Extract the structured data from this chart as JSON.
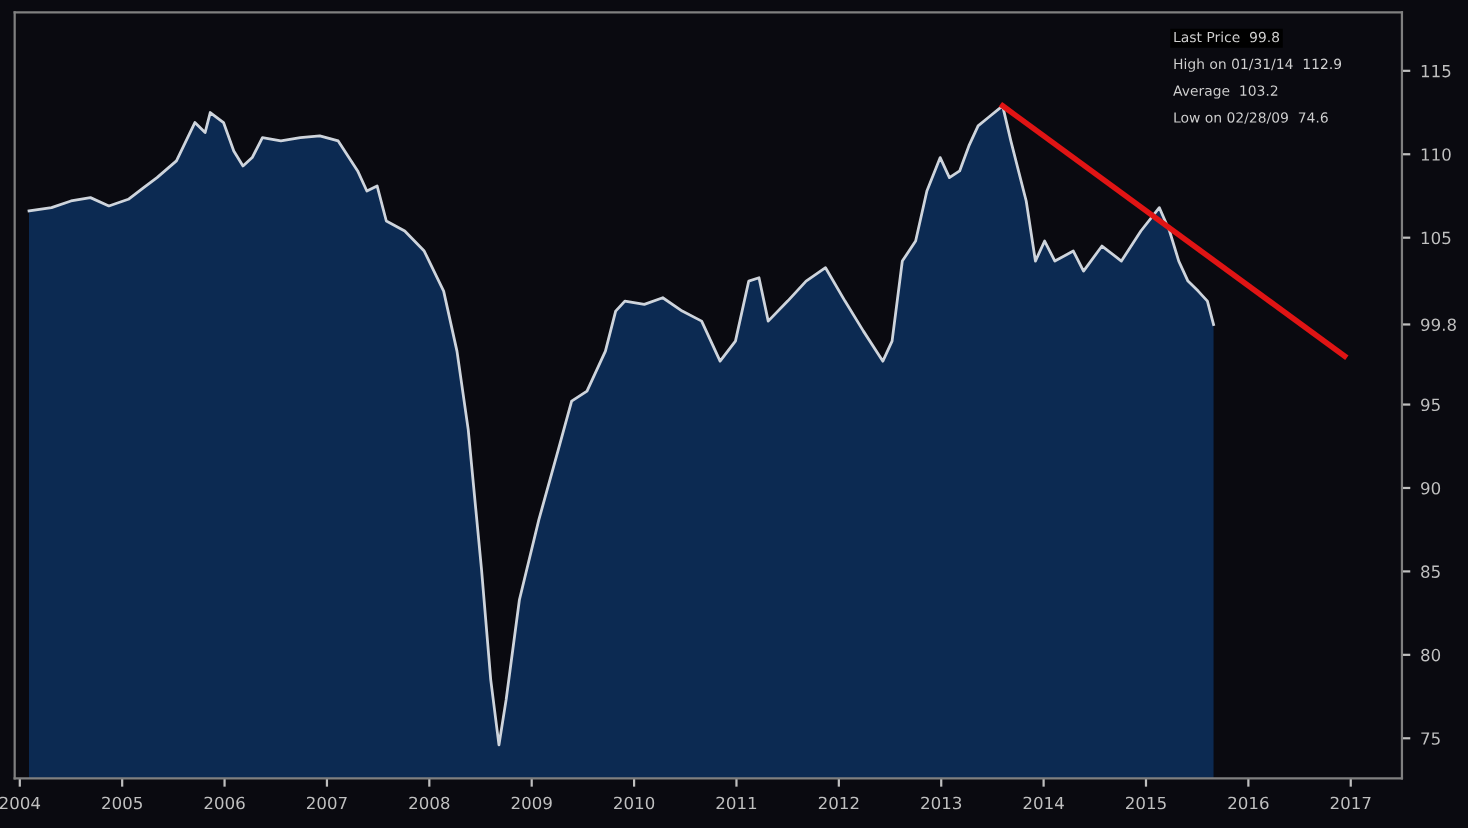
{
  "chart_data": {
    "type": "area",
    "x": [
      2004.59,
      2004.81,
      2005.0,
      2005.19,
      2005.37,
      2005.56,
      2005.71,
      2005.84,
      2006.03,
      2006.21,
      2006.31,
      2006.36,
      2006.49,
      2006.59,
      2006.68,
      2006.77,
      2006.87,
      2007.05,
      2007.24,
      2007.43,
      2007.61,
      2007.8,
      2007.89,
      2007.99,
      2008.08,
      2008.26,
      2008.45,
      2008.64,
      2008.77,
      2008.88,
      2009.01,
      2009.1,
      2009.18,
      2009.25,
      2009.38,
      2009.57,
      2009.76,
      2009.89,
      2010.04,
      2010.22,
      2010.32,
      2010.41,
      2010.6,
      2010.78,
      2010.97,
      2011.16,
      2011.34,
      2011.49,
      2011.62,
      2011.72,
      2011.81,
      2012.0,
      2012.18,
      2012.37,
      2012.56,
      2012.74,
      2012.93,
      2013.02,
      2013.12,
      2013.25,
      2013.36,
      2013.49,
      2013.58,
      2013.68,
      2013.77,
      2013.86,
      2013.96,
      2014.1,
      2014.18,
      2014.33,
      2014.42,
      2014.51,
      2014.61,
      2014.79,
      2014.89,
      2015.07,
      2015.26,
      2015.45,
      2015.63,
      2015.73,
      2015.82,
      2015.91,
      2016.01,
      2016.1,
      2016.16
    ],
    "series": [
      {
        "color": "#0c2a52",
        "values": [
          106.6,
          106.8,
          107.2,
          107.4,
          106.9,
          107.3,
          108.0,
          108.6,
          109.6,
          111.9,
          111.3,
          112.5,
          111.9,
          110.2,
          109.3,
          109.8,
          111.0,
          110.8,
          111.0,
          111.1,
          110.8,
          109.0,
          107.8,
          108.1,
          106.0,
          105.4,
          104.2,
          101.8,
          98.2,
          93.5,
          85.1,
          78.5,
          74.6,
          77.3,
          83.3,
          88.1,
          92.3,
          95.2,
          95.8,
          98.2,
          100.6,
          101.2,
          101.0,
          101.4,
          100.6,
          100.0,
          97.6,
          98.8,
          102.4,
          102.6,
          100.0,
          101.2,
          102.4,
          103.2,
          101.2,
          99.4,
          97.6,
          98.8,
          103.6,
          104.8,
          107.8,
          109.8,
          108.6,
          109.0,
          110.5,
          111.7,
          112.2,
          112.9,
          110.8,
          107.2,
          103.6,
          104.8,
          103.6,
          104.2,
          103.0,
          104.5,
          103.6,
          105.4,
          106.8,
          105.4,
          103.6,
          102.4,
          101.8,
          101.2,
          99.8
        ]
      },
      {
        "type": "line",
        "color": "#e01414",
        "x": [
          2014.1,
          2017.44
        ],
        "values": [
          112.9,
          97.9
        ]
      }
    ],
    "xlim": [
      2004.45,
      2018.0
    ],
    "xticks": [
      {
        "value": 2004.5,
        "label": "2004"
      },
      {
        "value": 2005.5,
        "label": "2005"
      },
      {
        "value": 2006.5,
        "label": "2006"
      },
      {
        "value": 2007.5,
        "label": "2007"
      },
      {
        "value": 2008.5,
        "label": "2008"
      },
      {
        "value": 2009.5,
        "label": "2009"
      },
      {
        "value": 2010.5,
        "label": "2010"
      },
      {
        "value": 2011.5,
        "label": "2011"
      },
      {
        "value": 2012.5,
        "label": "2012"
      },
      {
        "value": 2013.5,
        "label": "2013"
      },
      {
        "value": 2014.5,
        "label": "2014"
      },
      {
        "value": 2015.5,
        "label": "2015"
      },
      {
        "value": 2016.5,
        "label": "2016"
      },
      {
        "value": 2017.5,
        "label": "2017"
      }
    ],
    "ylim": [
      72.6,
      118.5
    ],
    "yticks": [
      75,
      80,
      85,
      90,
      95,
      {
        "value": 99.8,
        "label": "99.8"
      },
      105,
      110,
      115
    ],
    "annotations": [
      "Last Price  99.8",
      "High on 01/31/14  112.9",
      "Average  103.2",
      "Low on 02/28/09  74.6"
    ],
    "marker": "none",
    "line_style": "solid",
    "grid": false,
    "legend": false
  }
}
